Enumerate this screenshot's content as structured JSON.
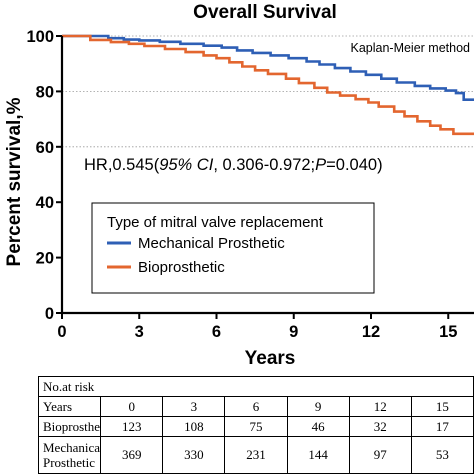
{
  "chart_data": {
    "type": "line",
    "title": "Overall Survival",
    "method_note": "Kaplan-Meier method",
    "hr_text_parts": [
      "HR,0.545(",
      "95% CI",
      ", 0.306-0.972;",
      "P",
      "=0.040)"
    ],
    "xlabel": "Years",
    "ylabel": "Percent survival,%",
    "xlim": [
      0,
      16
    ],
    "ylim": [
      0,
      100
    ],
    "x_ticks": [
      0,
      3,
      6,
      9,
      12,
      15
    ],
    "y_ticks": [
      0,
      20,
      40,
      60,
      80,
      100
    ],
    "y_grid": [
      60,
      80,
      100
    ],
    "legend_title": "Type of mitral valve replacement",
    "series": [
      {
        "name": "Mechanical Prosthetic",
        "color": "#2e5fb5",
        "points": [
          [
            0,
            100
          ],
          [
            1.5,
            100
          ],
          [
            1.8,
            99.2
          ],
          [
            2.4,
            98.7
          ],
          [
            3,
            98.4
          ],
          [
            3.8,
            97.9
          ],
          [
            4.6,
            97.2
          ],
          [
            5.5,
            96.5
          ],
          [
            6.2,
            95.8
          ],
          [
            6.8,
            94.8
          ],
          [
            7.4,
            93.9
          ],
          [
            8.1,
            93
          ],
          [
            8.8,
            92
          ],
          [
            9.5,
            90.8
          ],
          [
            10,
            89.7
          ],
          [
            10.6,
            88.4
          ],
          [
            11.2,
            87.2
          ],
          [
            11.8,
            86
          ],
          [
            12.4,
            84.6
          ],
          [
            13,
            83.2
          ],
          [
            13.7,
            82
          ],
          [
            14.3,
            81.1
          ],
          [
            14.9,
            80.3
          ],
          [
            15.3,
            79.4
          ],
          [
            15.6,
            77
          ],
          [
            16,
            77
          ]
        ]
      },
      {
        "name": "Bioprosthetic",
        "color": "#e3662f",
        "points": [
          [
            0,
            100
          ],
          [
            1,
            100
          ],
          [
            1.1,
            98.6
          ],
          [
            1.9,
            97.8
          ],
          [
            2.6,
            97.2
          ],
          [
            3.2,
            96.4
          ],
          [
            4,
            95.3
          ],
          [
            4.8,
            94.2
          ],
          [
            5.5,
            93
          ],
          [
            6,
            92
          ],
          [
            6.5,
            90.5
          ],
          [
            7,
            89
          ],
          [
            7.5,
            87.6
          ],
          [
            8,
            86.3
          ],
          [
            8.7,
            84.6
          ],
          [
            9.2,
            83
          ],
          [
            9.8,
            81.3
          ],
          [
            10.3,
            79.6
          ],
          [
            10.8,
            78.5
          ],
          [
            11.4,
            77.2
          ],
          [
            11.9,
            76
          ],
          [
            12.3,
            74.5
          ],
          [
            12.9,
            72.7
          ],
          [
            13.3,
            71
          ],
          [
            13.8,
            69.2
          ],
          [
            14.3,
            67.6
          ],
          [
            14.7,
            66.3
          ],
          [
            15.2,
            64.7
          ],
          [
            16,
            64.7
          ]
        ]
      }
    ]
  },
  "risk_table": {
    "header": "No.at risk",
    "rows": [
      {
        "label": "Years",
        "values": [
          "0",
          "3",
          "6",
          "9",
          "12",
          "15"
        ]
      },
      {
        "label": "Bioprosthetic",
        "values": [
          "123",
          "108",
          "75",
          "46",
          "32",
          "17"
        ]
      },
      {
        "label": "Mechanical Prosthetic",
        "values": [
          "369",
          "330",
          "231",
          "144",
          "97",
          "53"
        ]
      }
    ]
  }
}
